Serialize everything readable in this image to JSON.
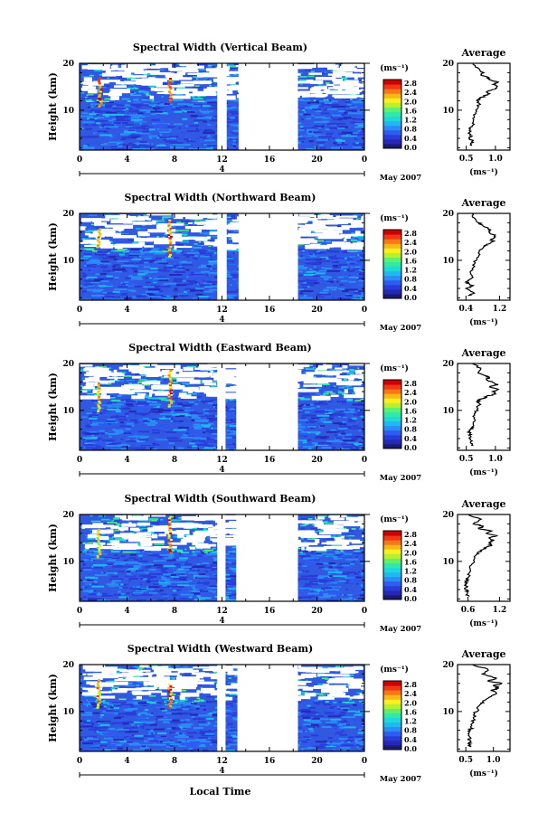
{
  "colors": {
    "scale": [
      "#1a1a70",
      "#2428b4",
      "#2a3cd8",
      "#2e5cf0",
      "#2a8cf4",
      "#20b8f0",
      "#20d8d8",
      "#30e8a8",
      "#60f070",
      "#b8f030",
      "#f8f020",
      "#f8b818",
      "#f87818",
      "#f03818",
      "#d00000"
    ],
    "background_field": "#3158e0"
  },
  "footer": {
    "date": "May 2007",
    "xlabel": "Local Time"
  },
  "colorbar": {
    "unit": "(ms⁻¹)",
    "ticks": [
      "0.0",
      "0.4",
      "0.8",
      "1.2",
      "1.6",
      "2.0",
      "2.4",
      "2.8"
    ]
  },
  "panels": [
    {
      "title": "Spectral Width (Vertical Beam)",
      "ylabel": "Height (km)",
      "gaps": [
        [
          11.6,
          12.4
        ],
        [
          13.4,
          18.4
        ]
      ],
      "chart_data": {
        "type": "heatmap",
        "x_label": "",
        "y_label": "Height (km)",
        "xlim": [
          0,
          24
        ],
        "ylim": [
          1.5,
          20
        ],
        "x_ticks": [
          "0",
          "4",
          "8",
          "12",
          "16",
          "20",
          "0"
        ],
        "y_ticks": [
          "10",
          "20"
        ],
        "day_marker": "4",
        "colorbar_range": [
          0.0,
          2.8
        ],
        "features": [
          {
            "time": 1.7,
            "height_range": [
              11,
              17
            ],
            "value": 2.8
          },
          {
            "time": 7.6,
            "height_range": [
              12,
              17
            ],
            "value": 2.8
          }
        ]
      },
      "avg": {
        "title": "Average",
        "unit": "(ms⁻¹)",
        "x_ticks": [
          "0.5",
          "1.0"
        ],
        "y_ticks": [
          "10",
          "20"
        ],
        "chart_data": {
          "type": "line",
          "xlim": [
            0.35,
            1.25
          ],
          "ylim": [
            1.5,
            20
          ],
          "x": [
            0.6,
            0.58,
            0.62,
            0.56,
            0.6,
            0.55,
            0.58,
            0.57,
            0.6,
            0.62,
            0.64,
            0.66,
            0.7,
            0.72,
            0.68,
            0.74,
            0.8,
            0.9,
            0.86,
            1.0,
            1.02,
            0.96,
            1.05,
            0.9,
            0.88,
            0.75,
            0.8,
            0.7,
            0.62
          ],
          "y": [
            2.5,
            3.0,
            3.5,
            4.0,
            4.5,
            5.0,
            5.5,
            6.0,
            6.5,
            7.5,
            8.5,
            9.5,
            10.5,
            11.5,
            12.0,
            12.5,
            13.0,
            13.5,
            14.0,
            14.5,
            15.0,
            15.5,
            16.0,
            16.5,
            17.0,
            17.5,
            18.0,
            19.0,
            20.0
          ]
        }
      }
    },
    {
      "title": "Spectral Width (Northward Beam)",
      "ylabel": "Height (km)",
      "gaps": [
        [
          11.6,
          12.4
        ],
        [
          13.4,
          18.4
        ]
      ],
      "chart_data": {
        "type": "heatmap",
        "x_label": "",
        "y_label": "Height (km)",
        "xlim": [
          0,
          24
        ],
        "ylim": [
          1.5,
          20
        ],
        "x_ticks": [
          "0",
          "4",
          "8",
          "12",
          "16",
          "20",
          "0"
        ],
        "y_ticks": [
          "10",
          "20"
        ],
        "day_marker": "4",
        "colorbar_range": [
          0.0,
          2.8
        ],
        "features": [
          {
            "time": 1.6,
            "height_range": [
              13,
              17
            ],
            "value": 2.6
          },
          {
            "time": 7.6,
            "height_range": [
              11,
              19
            ],
            "value": 2.8
          }
        ]
      },
      "avg": {
        "title": "Average",
        "unit": "(ms⁻¹)",
        "x_ticks": [
          "0.4",
          "1.2"
        ],
        "y_ticks": [
          "10",
          "20"
        ],
        "chart_data": {
          "type": "line",
          "xlim": [
            0.2,
            1.45
          ],
          "ylim": [
            1.5,
            20
          ],
          "x": [
            0.45,
            0.6,
            0.5,
            0.4,
            0.55,
            0.48,
            0.42,
            0.5,
            0.55,
            0.5,
            0.58,
            0.62,
            0.66,
            0.7,
            0.72,
            0.8,
            0.85,
            0.95,
            1.05,
            1.0,
            1.1,
            1.05,
            0.95,
            1.0,
            0.9,
            0.8,
            0.7,
            0.6,
            0.55
          ],
          "y": [
            2.5,
            3.0,
            3.5,
            4.0,
            4.5,
            5.0,
            5.5,
            6.0,
            6.5,
            7.5,
            8.5,
            9.5,
            10.5,
            11.5,
            12.0,
            12.5,
            13.0,
            13.5,
            14.0,
            14.5,
            15.0,
            15.5,
            16.0,
            16.5,
            17.0,
            17.5,
            18.0,
            19.0,
            20.0
          ]
        }
      }
    },
    {
      "title": "Spectral Width (Eastward Beam)",
      "ylabel": "Height (km)",
      "gaps": [
        [
          11.6,
          12.3
        ],
        [
          13.2,
          18.4
        ]
      ],
      "chart_data": {
        "type": "heatmap",
        "x_label": "",
        "y_label": "Height (km)",
        "xlim": [
          0,
          24
        ],
        "ylim": [
          1.5,
          20
        ],
        "x_ticks": [
          "0",
          "4",
          "8",
          "12",
          "16",
          "20",
          "0"
        ],
        "y_ticks": [
          "10",
          "20"
        ],
        "day_marker": "4",
        "colorbar_range": [
          0.0,
          2.8
        ],
        "features": [
          {
            "time": 1.6,
            "height_range": [
              10,
              16
            ],
            "value": 2.6
          },
          {
            "time": 7.6,
            "height_range": [
              11,
              19
            ],
            "value": 2.8
          }
        ]
      },
      "avg": {
        "title": "Average",
        "unit": "(ms⁻¹)",
        "x_ticks": [
          "0.5",
          "1.0"
        ],
        "y_ticks": [
          "10",
          "20"
        ],
        "chart_data": {
          "type": "line",
          "xlim": [
            0.35,
            1.25
          ],
          "ylim": [
            1.5,
            20
          ],
          "x": [
            0.62,
            0.58,
            0.6,
            0.56,
            0.58,
            0.56,
            0.55,
            0.58,
            0.6,
            0.62,
            0.64,
            0.66,
            0.7,
            0.72,
            0.68,
            0.78,
            0.85,
            1.0,
            0.95,
            1.05,
            0.9,
            1.05,
            0.95,
            0.85,
            0.9,
            0.8,
            0.7,
            0.75,
            0.6
          ],
          "y": [
            2.5,
            3.0,
            3.5,
            4.0,
            4.5,
            5.0,
            5.5,
            6.0,
            6.5,
            7.5,
            8.5,
            9.5,
            10.5,
            11.5,
            12.0,
            12.5,
            13.0,
            13.5,
            14.0,
            14.5,
            15.0,
            15.5,
            16.0,
            16.5,
            17.0,
            17.5,
            18.0,
            19.0,
            20.0
          ]
        }
      }
    },
    {
      "title": "Spectral Width (Southward Beam)",
      "ylabel": "Height (km)",
      "gaps": [
        [
          11.6,
          12.3
        ],
        [
          13.2,
          18.4
        ]
      ],
      "chart_data": {
        "type": "heatmap",
        "x_label": "",
        "y_label": "Height (km)",
        "xlim": [
          0,
          24
        ],
        "ylim": [
          1.5,
          20
        ],
        "x_ticks": [
          "0",
          "4",
          "8",
          "12",
          "16",
          "20",
          "0"
        ],
        "y_ticks": [
          "10",
          "20"
        ],
        "day_marker": "4",
        "colorbar_range": [
          0.0,
          2.8
        ],
        "features": [
          {
            "time": 1.6,
            "height_range": [
              11,
              17
            ],
            "value": 2.4
          },
          {
            "time": 7.6,
            "height_range": [
              12,
              20
            ],
            "value": 2.8
          }
        ]
      },
      "avg": {
        "title": "Average",
        "unit": "(ms⁻¹)",
        "x_ticks": [
          "0.6",
          "1.2"
        ],
        "y_ticks": [
          "10",
          "20"
        ],
        "chart_data": {
          "type": "line",
          "xlim": [
            0.4,
            1.4
          ],
          "ylim": [
            1.5,
            20
          ],
          "x": [
            0.62,
            0.58,
            0.6,
            0.55,
            0.58,
            0.56,
            0.55,
            0.58,
            0.6,
            0.62,
            0.64,
            0.68,
            0.72,
            0.76,
            0.8,
            0.88,
            0.95,
            1.05,
            1.0,
            1.1,
            1.0,
            1.15,
            0.95,
            1.05,
            0.8,
            0.9,
            0.7,
            0.85,
            0.6
          ],
          "y": [
            2.5,
            3.0,
            3.5,
            4.0,
            4.5,
            5.0,
            5.5,
            6.0,
            6.5,
            7.5,
            8.5,
            9.5,
            10.5,
            11.5,
            12.0,
            12.5,
            13.0,
            13.5,
            14.0,
            14.5,
            15.0,
            15.5,
            16.0,
            16.5,
            17.0,
            17.5,
            18.0,
            19.0,
            20.0
          ]
        }
      }
    },
    {
      "title": "Spectral Width (Westward Beam)",
      "ylabel": "Height (km)",
      "gaps": [
        [
          11.6,
          12.3
        ],
        [
          13.3,
          18.4
        ]
      ],
      "chart_data": {
        "type": "heatmap",
        "x_label": "",
        "y_label": "Height (km)",
        "xlim": [
          0,
          24
        ],
        "ylim": [
          1.5,
          20
        ],
        "x_ticks": [
          "0",
          "4",
          "8",
          "12",
          "16",
          "20",
          "0"
        ],
        "y_ticks": [
          "10",
          "20"
        ],
        "day_marker": "4",
        "colorbar_range": [
          0.0,
          2.8
        ],
        "features": [
          {
            "time": 1.6,
            "height_range": [
              11,
              17
            ],
            "value": 2.6
          },
          {
            "time": 7.6,
            "height_range": [
              11,
              16
            ],
            "value": 2.8
          }
        ]
      },
      "avg": {
        "title": "Average",
        "unit": "(ms⁻¹)",
        "x_ticks": [
          "0.5",
          "1.0"
        ],
        "y_ticks": [
          "10",
          "20"
        ],
        "chart_data": {
          "type": "line",
          "xlim": [
            0.35,
            1.3
          ],
          "ylim": [
            1.5,
            20
          ],
          "x": [
            0.6,
            0.56,
            0.58,
            0.54,
            0.58,
            0.55,
            0.56,
            0.58,
            0.6,
            0.62,
            0.64,
            0.66,
            0.72,
            0.76,
            0.8,
            0.86,
            0.92,
            1.0,
            1.05,
            0.95,
            1.1,
            1.0,
            1.15,
            0.9,
            1.05,
            0.95,
            0.8,
            0.9,
            0.62
          ],
          "y": [
            2.5,
            3.0,
            3.5,
            4.0,
            4.5,
            5.0,
            5.5,
            6.0,
            6.5,
            7.5,
            8.5,
            9.5,
            10.5,
            11.5,
            12.0,
            12.5,
            13.0,
            13.5,
            14.0,
            14.5,
            15.0,
            15.5,
            16.0,
            16.5,
            17.0,
            17.5,
            18.0,
            19.0,
            20.0
          ]
        }
      }
    }
  ]
}
